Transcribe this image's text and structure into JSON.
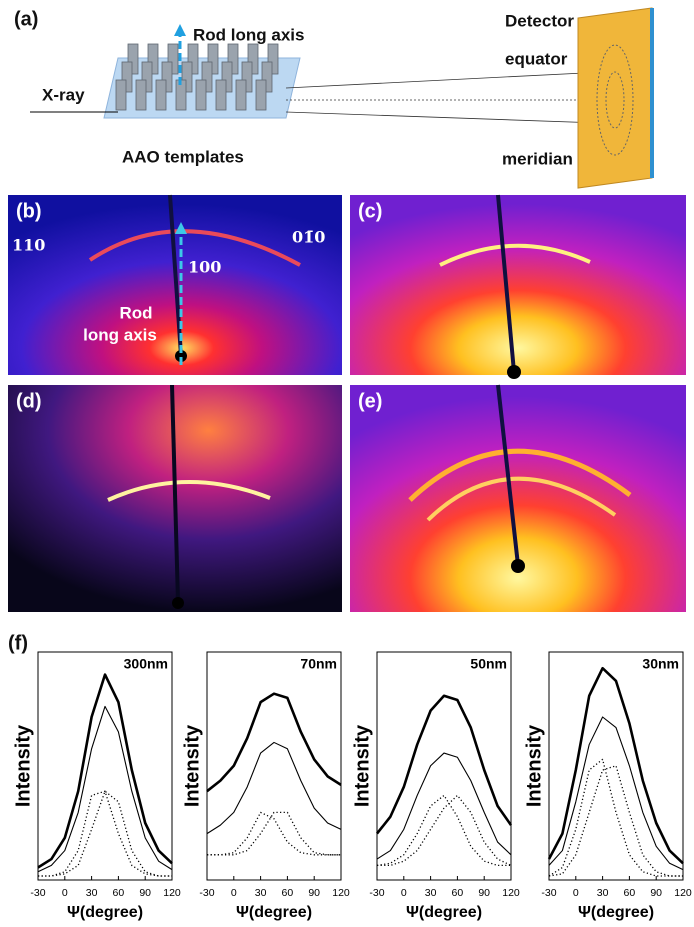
{
  "figure": {
    "panel_labels": [
      "(a)",
      "(b)",
      "(c)",
      "(d)",
      "(e)",
      "(f)"
    ],
    "schematic": {
      "rod_axis": "Rod long axis",
      "detector": "Detector",
      "xray": "X-ray",
      "equator": "equator",
      "templates": "AAO templates",
      "meridian": "meridian"
    },
    "pattern_b": {
      "reflections": [
        "110",
        "100",
        "01̄0"
      ],
      "rod_axis": [
        "Rod",
        "long axis"
      ]
    }
  },
  "chart_data": [
    {
      "type": "line",
      "title": "300nm",
      "x_label": "Ψ(degree)",
      "y_label": "Intensity",
      "x": [
        -30,
        -15,
        0,
        15,
        30,
        45,
        60,
        75,
        90,
        105,
        120
      ],
      "xlim": [
        -30,
        120
      ],
      "xticks": [
        -30,
        0,
        30,
        60,
        90,
        120
      ],
      "ylim": [
        0,
        100
      ],
      "series": [
        {
          "color": "#000000",
          "line_style": "bold",
          "values": [
            4,
            8,
            18,
            40,
            75,
            95,
            82,
            50,
            25,
            12,
            6
          ]
        },
        {
          "color": "#000000",
          "line_style": "solid",
          "values": [
            2,
            5,
            12,
            30,
            60,
            80,
            68,
            40,
            18,
            7,
            3
          ]
        },
        {
          "color": "#000000",
          "line_style": "dotted",
          "values": [
            0,
            0,
            2,
            12,
            38,
            40,
            20,
            5,
            1,
            0,
            0
          ]
        },
        {
          "color": "#000000",
          "line_style": "dotted",
          "values": [
            0,
            0,
            1,
            5,
            22,
            40,
            35,
            12,
            2,
            0,
            0
          ]
        }
      ]
    },
    {
      "type": "line",
      "title": "70nm",
      "x_label": "Ψ(degree)",
      "y_label": "Intensity",
      "x": [
        -30,
        -15,
        0,
        15,
        30,
        45,
        60,
        75,
        90,
        105,
        120
      ],
      "xlim": [
        -30,
        120
      ],
      "xticks": [
        -30,
        0,
        30,
        60,
        90,
        120
      ],
      "ylim": [
        0,
        100
      ],
      "series": [
        {
          "color": "#000000",
          "line_style": "bold",
          "values": [
            40,
            45,
            52,
            65,
            82,
            86,
            84,
            68,
            55,
            47,
            43
          ]
        },
        {
          "color": "#000000",
          "line_style": "solid",
          "values": [
            20,
            24,
            30,
            42,
            58,
            63,
            60,
            45,
            32,
            25,
            22
          ]
        },
        {
          "color": "#000000",
          "line_style": "dotted",
          "values": [
            10,
            10,
            11,
            18,
            30,
            27,
            16,
            11,
            10,
            10,
            10
          ]
        },
        {
          "color": "#000000",
          "line_style": "dotted",
          "values": [
            10,
            10,
            10,
            12,
            20,
            30,
            30,
            18,
            11,
            10,
            10
          ]
        }
      ]
    },
    {
      "type": "line",
      "title": "50nm",
      "x_label": "Ψ(degree)",
      "y_label": "Intensity",
      "x": [
        -30,
        -15,
        0,
        15,
        30,
        45,
        60,
        75,
        90,
        105,
        120
      ],
      "xlim": [
        -30,
        120
      ],
      "xticks": [
        -30,
        0,
        30,
        60,
        90,
        120
      ],
      "ylim": [
        0,
        100
      ],
      "series": [
        {
          "color": "#000000",
          "line_style": "bold",
          "values": [
            20,
            28,
            42,
            62,
            78,
            85,
            83,
            70,
            50,
            33,
            24
          ]
        },
        {
          "color": "#000000",
          "line_style": "solid",
          "values": [
            8,
            12,
            22,
            38,
            52,
            58,
            56,
            45,
            30,
            16,
            10
          ]
        },
        {
          "color": "#000000",
          "line_style": "dotted",
          "values": [
            5,
            6,
            10,
            20,
            33,
            38,
            28,
            14,
            7,
            5,
            5
          ]
        },
        {
          "color": "#000000",
          "line_style": "dotted",
          "values": [
            5,
            5,
            7,
            12,
            22,
            32,
            38,
            30,
            16,
            8,
            5
          ]
        }
      ]
    },
    {
      "type": "line",
      "title": "30nm",
      "x_label": "Ψ(degree)",
      "y_label": "Intensity",
      "x": [
        -30,
        -15,
        0,
        15,
        30,
        45,
        60,
        75,
        90,
        105,
        120
      ],
      "xlim": [
        -30,
        120
      ],
      "xticks": [
        -30,
        0,
        30,
        60,
        90,
        120
      ],
      "ylim": [
        0,
        100
      ],
      "series": [
        {
          "color": "#000000",
          "line_style": "bold",
          "values": [
            8,
            20,
            50,
            85,
            98,
            92,
            72,
            45,
            25,
            12,
            6
          ]
        },
        {
          "color": "#000000",
          "line_style": "solid",
          "values": [
            5,
            12,
            35,
            62,
            75,
            70,
            52,
            30,
            14,
            6,
            3
          ]
        },
        {
          "color": "#000000",
          "line_style": "dotted",
          "values": [
            0,
            4,
            22,
            50,
            55,
            30,
            10,
            2,
            0,
            0,
            0
          ]
        },
        {
          "color": "#000000",
          "line_style": "dotted",
          "values": [
            0,
            1,
            10,
            30,
            50,
            52,
            30,
            10,
            2,
            0,
            0
          ]
        }
      ]
    }
  ]
}
